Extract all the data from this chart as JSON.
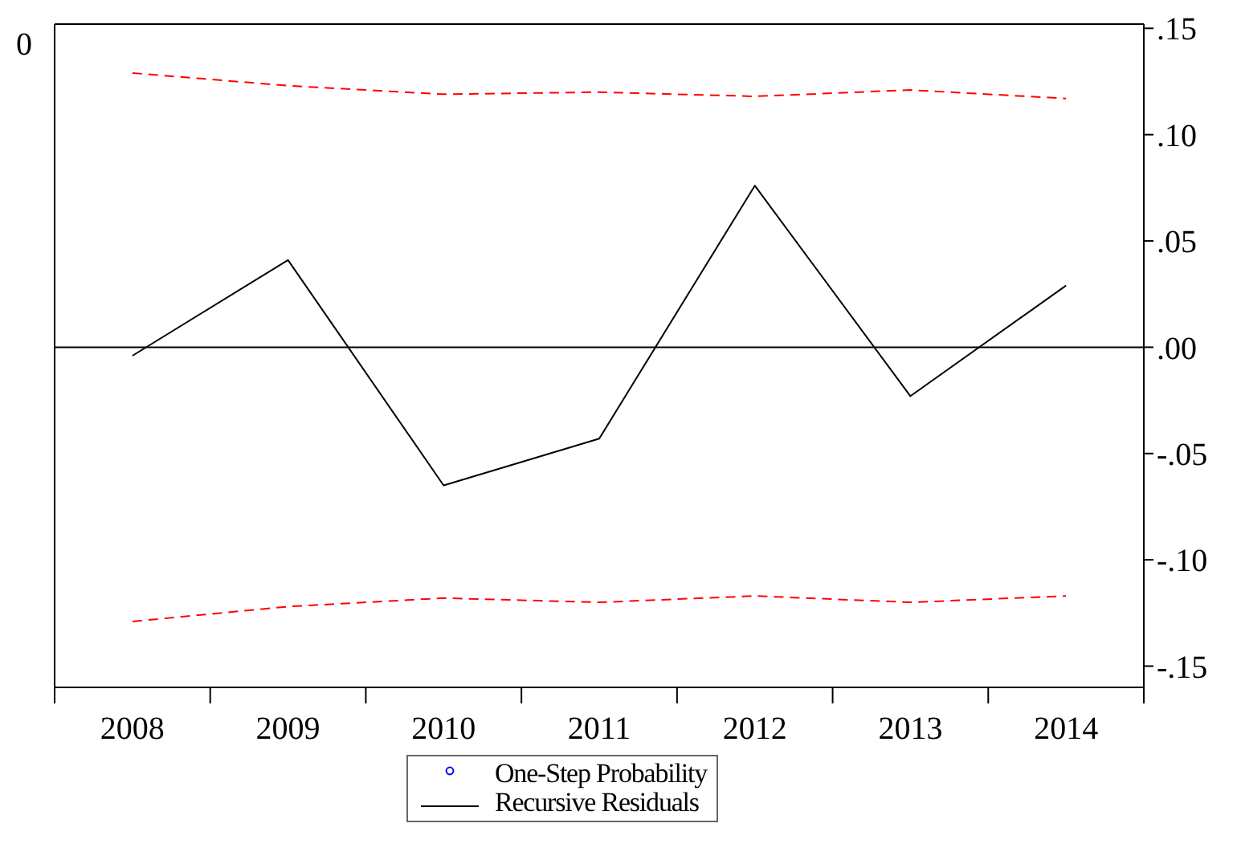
{
  "chart_data": {
    "type": "line",
    "categories": [
      "2008",
      "2009",
      "2010",
      "2011",
      "2012",
      "2013",
      "2014"
    ],
    "series": [
      {
        "name": "One-Step Probability",
        "type": "scatter",
        "color": "#0000ff",
        "marker": "circle",
        "values": [
          null,
          null,
          null,
          null,
          null,
          null,
          null
        ]
      },
      {
        "name": "Recursive Residuals",
        "color": "#000000",
        "axis": "y2",
        "values": [
          -0.004,
          0.041,
          -0.065,
          -0.043,
          0.076,
          -0.023,
          0.029
        ]
      },
      {
        "color": "#ff0000",
        "axis": "y2",
        "line_style": "dashed",
        "values": [
          0.129,
          0.123,
          0.119,
          0.12,
          0.118,
          0.121,
          0.117
        ]
      },
      {
        "color": "#ff0000",
        "axis": "y2",
        "line_style": "dashed",
        "values": [
          -0.129,
          -0.122,
          -0.118,
          -0.12,
          -0.117,
          -0.12,
          -0.117
        ]
      }
    ],
    "annotations": [
      "0"
    ],
    "y2lim": [
      -0.16,
      0.152
    ],
    "y2ticks": [
      {
        "value": -0.15,
        "label": "-.15"
      },
      {
        "value": -0.1,
        "label": "-.10"
      },
      {
        "value": -0.05,
        "label": "-.05"
      },
      {
        "value": 0,
        "label": ".00"
      },
      {
        "value": 0.05,
        "label": ".05"
      },
      {
        "value": 0.1,
        "label": ".10"
      },
      {
        "value": 0.15,
        "label": ".15"
      }
    ],
    "ref_lines": [
      {
        "axis": "y2",
        "value": 0,
        "color": "#000000"
      }
    ],
    "legend": "bottom",
    "grid": false,
    "marker": "none"
  }
}
